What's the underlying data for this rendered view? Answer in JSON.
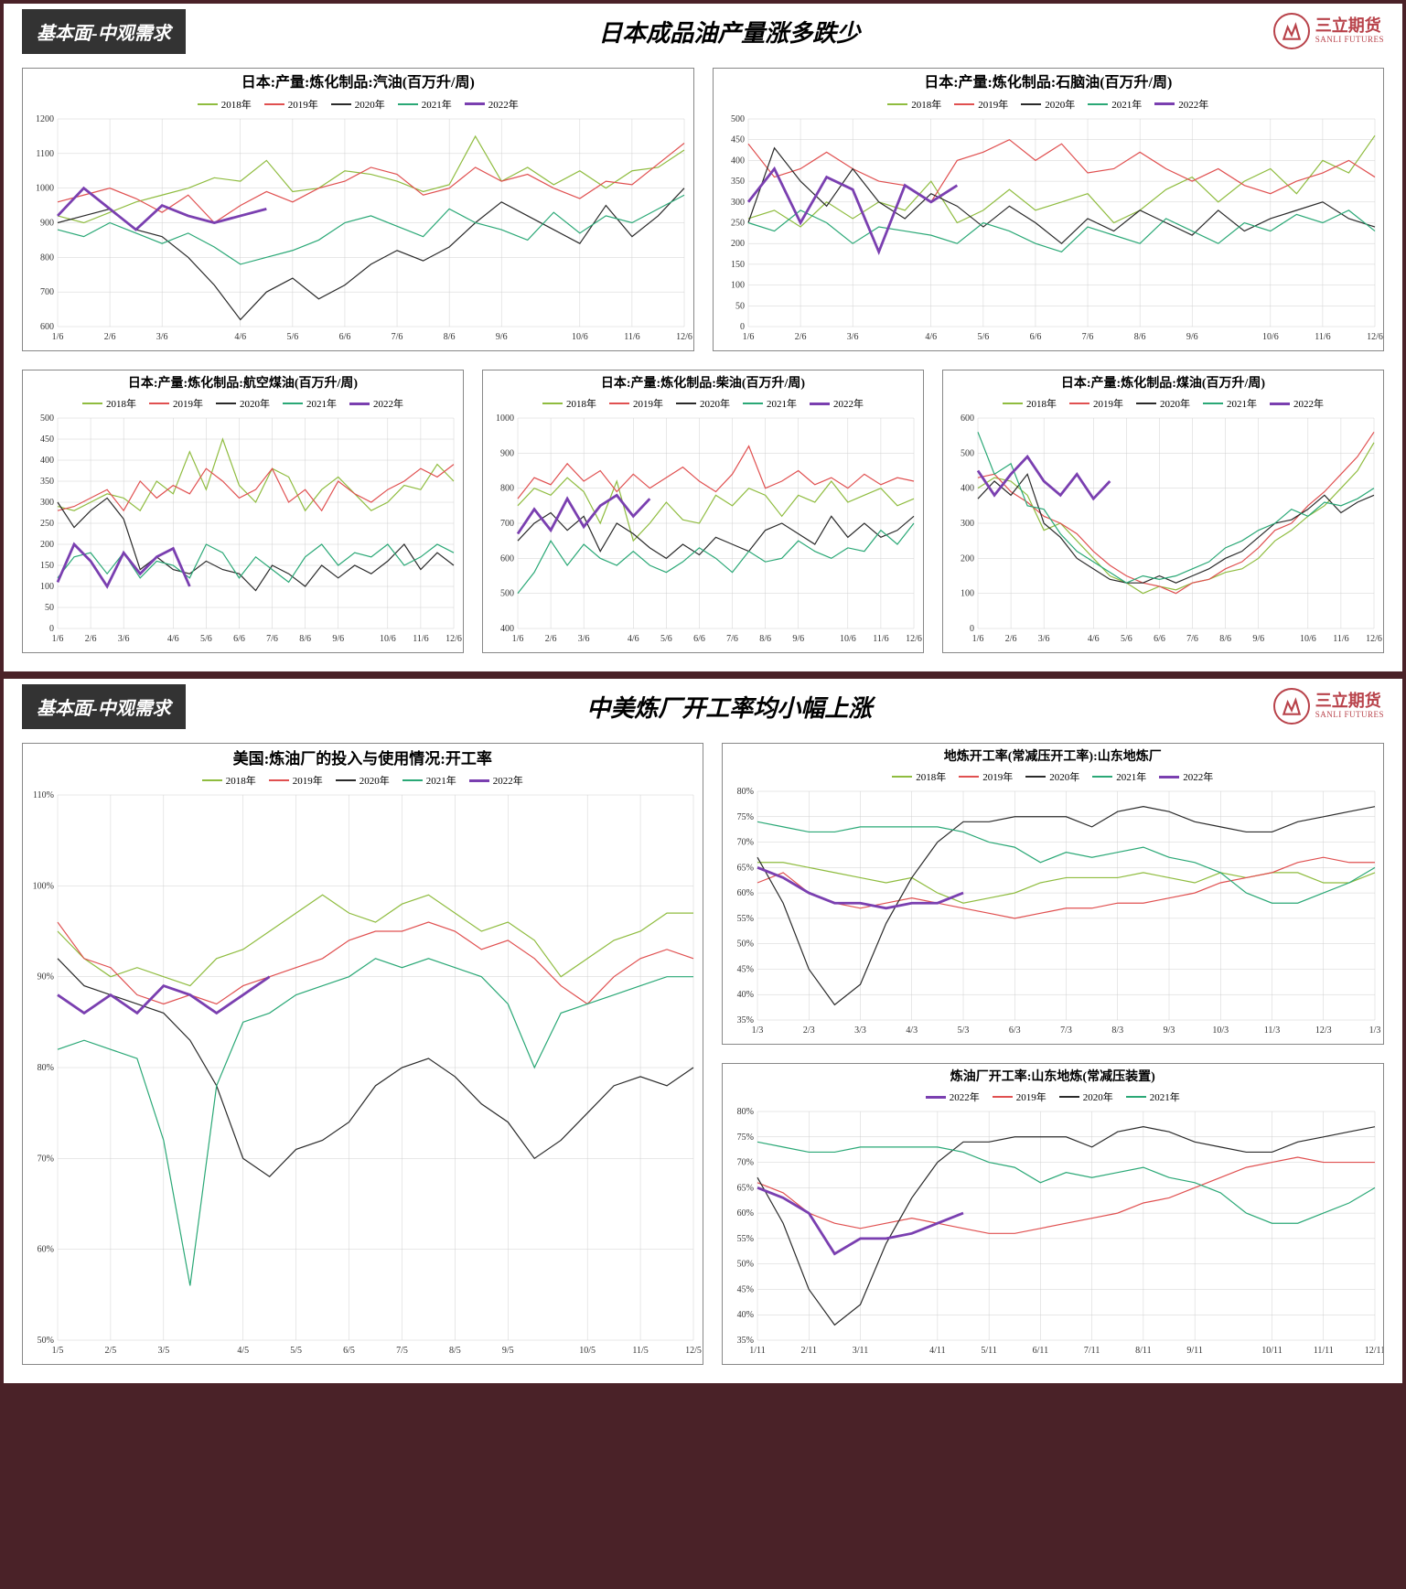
{
  "logo": {
    "cn": "三立期货",
    "en": "SANLI FUTURES"
  },
  "colors": {
    "y2018": "#8fbc3f",
    "y2019": "#e05050",
    "y2020": "#2a2a2a",
    "y2021": "#2aa876",
    "y2022": "#7a3fb0",
    "bg": "#ffffff",
    "grid": "#d0d0d0",
    "border": "#888888",
    "frame": "#4a2228",
    "tab": "#333333",
    "brand": "#b8424a"
  },
  "legend_years": [
    "2018年",
    "2019年",
    "2020年",
    "2021年",
    "2022年"
  ],
  "x_months": [
    "1/6",
    "2/6",
    "3/6",
    "4/6",
    "5/6",
    "6/6",
    "7/6",
    "8/6",
    "9/6",
    "10/6",
    "11/6",
    "12/6"
  ],
  "panel1": {
    "tab": "基本面-中观需求",
    "title": "日本成品油产量涨多跌少",
    "charts": {
      "gasoline": {
        "title": "日本:产量:炼化制品:汽油(百万升/周)",
        "ylim": [
          600,
          1200
        ],
        "ytick": 100,
        "title_fontsize": 16,
        "series": {
          "2018": [
            920,
            900,
            930,
            960,
            980,
            1000,
            1030,
            1020,
            1080,
            990,
            1000,
            1050,
            1040,
            1020,
            990,
            1010,
            1150,
            1020,
            1060,
            1010,
            1050,
            1000,
            1050,
            1060,
            1110
          ],
          "2019": [
            960,
            980,
            1000,
            970,
            930,
            980,
            900,
            950,
            990,
            960,
            1000,
            1020,
            1060,
            1040,
            980,
            1000,
            1060,
            1020,
            1040,
            1000,
            970,
            1020,
            1010,
            1070,
            1130
          ],
          "2020": [
            900,
            920,
            940,
            880,
            860,
            800,
            720,
            620,
            700,
            740,
            680,
            720,
            780,
            820,
            790,
            830,
            900,
            960,
            920,
            880,
            840,
            950,
            860,
            920,
            1000
          ],
          "2021": [
            880,
            860,
            900,
            870,
            840,
            870,
            830,
            780,
            800,
            820,
            850,
            900,
            920,
            890,
            860,
            940,
            900,
            880,
            850,
            930,
            870,
            920,
            900,
            940,
            980
          ],
          "2022": [
            920,
            1000,
            940,
            880,
            950,
            920,
            900,
            920,
            940
          ]
        }
      },
      "naphtha": {
        "title": "日本:产量:炼化制品:石脑油(百万升/周)",
        "ylim": [
          0,
          500
        ],
        "ytick": 50,
        "title_fontsize": 16,
        "series": {
          "2018": [
            260,
            280,
            240,
            300,
            260,
            300,
            280,
            350,
            250,
            280,
            330,
            280,
            300,
            320,
            250,
            280,
            330,
            360,
            300,
            350,
            380,
            320,
            400,
            370,
            460
          ],
          "2019": [
            440,
            360,
            380,
            420,
            380,
            350,
            340,
            300,
            400,
            420,
            450,
            400,
            440,
            370,
            380,
            420,
            380,
            350,
            380,
            340,
            320,
            350,
            370,
            400,
            360
          ],
          "2020": [
            250,
            430,
            350,
            290,
            380,
            300,
            260,
            320,
            290,
            240,
            290,
            250,
            200,
            260,
            230,
            280,
            250,
            220,
            280,
            230,
            260,
            280,
            300,
            260,
            240
          ],
          "2021": [
            250,
            230,
            280,
            250,
            200,
            240,
            230,
            220,
            200,
            250,
            230,
            200,
            180,
            240,
            220,
            200,
            260,
            230,
            200,
            250,
            230,
            270,
            250,
            280,
            230
          ],
          "2022": [
            300,
            380,
            250,
            360,
            330,
            180,
            340,
            300,
            340
          ]
        }
      },
      "jetfuel": {
        "title": "日本:产量:炼化制品:航空煤油(百万升/周)",
        "ylim": [
          0,
          500
        ],
        "ytick": 50,
        "title_fontsize": 14,
        "series": {
          "2018": [
            290,
            280,
            300,
            320,
            310,
            280,
            350,
            320,
            420,
            330,
            450,
            340,
            300,
            380,
            360,
            280,
            330,
            360,
            320,
            280,
            300,
            340,
            330,
            390,
            350
          ],
          "2019": [
            280,
            290,
            310,
            330,
            280,
            350,
            310,
            340,
            320,
            380,
            350,
            310,
            330,
            380,
            300,
            330,
            280,
            350,
            320,
            300,
            330,
            350,
            380,
            360,
            390
          ],
          "2020": [
            300,
            240,
            280,
            310,
            260,
            140,
            170,
            140,
            130,
            160,
            140,
            130,
            90,
            150,
            130,
            100,
            150,
            120,
            150,
            130,
            160,
            200,
            140,
            180,
            150
          ],
          "2021": [
            120,
            170,
            180,
            130,
            180,
            120,
            160,
            150,
            120,
            200,
            180,
            120,
            170,
            140,
            110,
            170,
            200,
            150,
            180,
            170,
            200,
            150,
            170,
            200,
            180
          ],
          "2022": [
            110,
            200,
            160,
            100,
            180,
            130,
            170,
            190,
            100
          ]
        }
      },
      "diesel": {
        "title": "日本:产量:炼化制品:柴油(百万升/周)",
        "ylim": [
          400,
          1000
        ],
        "ytick": 100,
        "title_fontsize": 14,
        "series": {
          "2018": [
            750,
            800,
            780,
            830,
            790,
            700,
            820,
            650,
            700,
            760,
            710,
            700,
            780,
            750,
            800,
            780,
            720,
            780,
            760,
            820,
            760,
            780,
            800,
            750,
            770
          ],
          "2019": [
            770,
            830,
            810,
            870,
            820,
            850,
            790,
            840,
            800,
            830,
            860,
            820,
            790,
            840,
            920,
            800,
            820,
            850,
            810,
            830,
            800,
            840,
            810,
            830,
            820
          ],
          "2020": [
            650,
            700,
            730,
            680,
            720,
            620,
            700,
            670,
            630,
            600,
            640,
            610,
            660,
            640,
            620,
            680,
            700,
            670,
            640,
            720,
            660,
            700,
            660,
            680,
            720
          ],
          "2021": [
            500,
            560,
            650,
            580,
            640,
            600,
            580,
            620,
            580,
            560,
            590,
            630,
            600,
            560,
            620,
            590,
            600,
            650,
            620,
            600,
            630,
            620,
            680,
            640,
            700
          ],
          "2022": [
            670,
            740,
            680,
            770,
            690,
            750,
            780,
            720,
            770
          ]
        }
      },
      "kerosene": {
        "title": "日本:产量:炼化制品:煤油(百万升/周)",
        "ylim": [
          0,
          600
        ],
        "ytick": 100,
        "title_fontsize": 14,
        "series": {
          "2018": [
            400,
            430,
            420,
            380,
            280,
            300,
            250,
            200,
            150,
            130,
            100,
            120,
            110,
            130,
            140,
            160,
            170,
            200,
            250,
            280,
            320,
            350,
            400,
            450,
            530
          ],
          "2019": [
            430,
            440,
            390,
            360,
            320,
            300,
            270,
            220,
            180,
            150,
            130,
            120,
            100,
            130,
            140,
            170,
            190,
            230,
            280,
            300,
            350,
            390,
            440,
            490,
            560
          ],
          "2020": [
            370,
            420,
            380,
            440,
            300,
            260,
            200,
            170,
            140,
            130,
            130,
            150,
            130,
            150,
            170,
            200,
            220,
            260,
            300,
            310,
            340,
            380,
            330,
            360,
            380
          ],
          "2021": [
            560,
            440,
            470,
            350,
            340,
            270,
            220,
            190,
            160,
            130,
            150,
            140,
            150,
            170,
            190,
            230,
            250,
            280,
            300,
            340,
            320,
            360,
            350,
            370,
            400
          ],
          "2022": [
            450,
            380,
            440,
            490,
            420,
            380,
            440,
            370,
            420
          ]
        }
      }
    }
  },
  "panel2": {
    "tab": "基本面-中观需求",
    "title": "中美炼厂开工率均小幅上涨",
    "x_months_alt1": [
      "1/5",
      "2/5",
      "3/5",
      "4/5",
      "5/5",
      "6/5",
      "7/5",
      "8/5",
      "9/5",
      "10/5",
      "11/5",
      "12/5"
    ],
    "x_months_alt2": [
      "1/3",
      "2/3",
      "3/3",
      "4/3",
      "5/3",
      "6/3",
      "7/3",
      "8/3",
      "9/3",
      "10/3",
      "11/3",
      "12/3",
      "1/3"
    ],
    "x_months_alt3": [
      "1/11",
      "2/11",
      "3/11",
      "4/11",
      "5/11",
      "6/11",
      "7/11",
      "8/11",
      "9/11",
      "10/11",
      "11/11",
      "12/11"
    ],
    "charts": {
      "us_refinery": {
        "title": "美国:炼油厂的投入与使用情况:开工率",
        "ylim": [
          50,
          110
        ],
        "ytick": 10,
        "title_fontsize": 17,
        "unit": "%",
        "series": {
          "2018": [
            95,
            92,
            90,
            91,
            90,
            89,
            92,
            93,
            95,
            97,
            99,
            97,
            96,
            98,
            99,
            97,
            95,
            96,
            94,
            90,
            92,
            94,
            95,
            97,
            97
          ],
          "2019": [
            96,
            92,
            91,
            88,
            87,
            88,
            87,
            89,
            90,
            91,
            92,
            94,
            95,
            95,
            96,
            95,
            93,
            94,
            92,
            89,
            87,
            90,
            92,
            93,
            92
          ],
          "2020": [
            92,
            89,
            88,
            87,
            86,
            83,
            78,
            70,
            68,
            71,
            72,
            74,
            78,
            80,
            81,
            79,
            76,
            74,
            70,
            72,
            75,
            78,
            79,
            78,
            80
          ],
          "2021": [
            82,
            83,
            82,
            81,
            72,
            56,
            78,
            85,
            86,
            88,
            89,
            90,
            92,
            91,
            92,
            91,
            90,
            87,
            80,
            86,
            87,
            88,
            89,
            90,
            90
          ],
          "2022": [
            88,
            86,
            88,
            86,
            89,
            88,
            86,
            88,
            90
          ]
        }
      },
      "shandong_top": {
        "title": "地炼开工率(常减压开工率):山东地炼厂",
        "ylim": [
          35,
          80
        ],
        "ytick": 5,
        "title_fontsize": 14,
        "unit": "%",
        "series": {
          "2018": [
            66,
            66,
            65,
            64,
            63,
            62,
            63,
            60,
            58,
            59,
            60,
            62,
            63,
            63,
            63,
            64,
            63,
            62,
            64,
            63,
            64,
            64,
            62,
            62,
            64
          ],
          "2019": [
            62,
            64,
            60,
            58,
            57,
            58,
            59,
            58,
            57,
            56,
            55,
            56,
            57,
            57,
            58,
            58,
            59,
            60,
            62,
            63,
            64,
            66,
            67,
            66,
            66
          ],
          "2020": [
            67,
            58,
            45,
            38,
            42,
            54,
            63,
            70,
            74,
            74,
            75,
            75,
            75,
            73,
            76,
            77,
            76,
            74,
            73,
            72,
            72,
            74,
            75,
            76,
            77
          ],
          "2021": [
            74,
            73,
            72,
            72,
            73,
            73,
            73,
            73,
            72,
            70,
            69,
            66,
            68,
            67,
            68,
            69,
            67,
            66,
            64,
            60,
            58,
            58,
            60,
            62,
            65
          ],
          "2022": [
            65,
            63,
            60,
            58,
            58,
            57,
            58,
            58,
            60
          ]
        }
      },
      "shandong_bottom": {
        "title": "炼油厂开工率:山东地炼(常减压装置)",
        "ylim": [
          35,
          80
        ],
        "ytick": 5,
        "title_fontsize": 14,
        "unit": "%",
        "series": {
          "2019": [
            66,
            64,
            60,
            58,
            57,
            58,
            59,
            58,
            57,
            56,
            56,
            57,
            58,
            59,
            60,
            62,
            63,
            65,
            67,
            69,
            70,
            71,
            70,
            70,
            70
          ],
          "2020": [
            67,
            58,
            45,
            38,
            42,
            54,
            63,
            70,
            74,
            74,
            75,
            75,
            75,
            73,
            76,
            77,
            76,
            74,
            73,
            72,
            72,
            74,
            75,
            76,
            77
          ],
          "2021": [
            74,
            73,
            72,
            72,
            73,
            73,
            73,
            73,
            72,
            70,
            69,
            66,
            68,
            67,
            68,
            69,
            67,
            66,
            64,
            60,
            58,
            58,
            60,
            62,
            65
          ],
          "2022": [
            65,
            63,
            60,
            52,
            55,
            55,
            56,
            58,
            60
          ]
        }
      }
    }
  }
}
